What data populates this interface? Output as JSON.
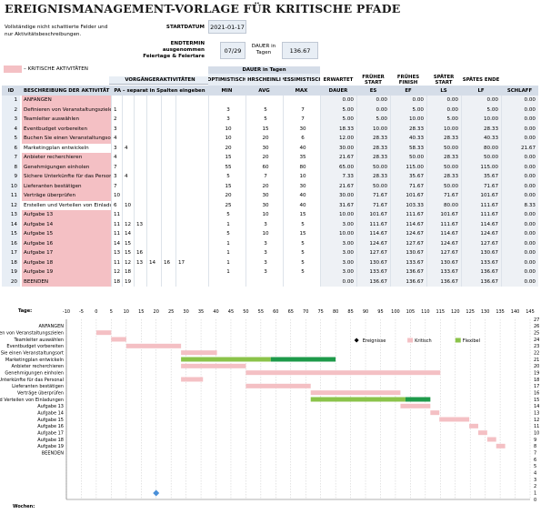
{
  "title": "EREIGNISMANAGEMENT-VORLAGE FÜR KRITISCHE PFADE",
  "instructions": "Vollständige nicht schattierte Felder und nur Aktivitätsbeschreibungen.",
  "start_date_label": "STARTDATUM",
  "start_date_value": "2021-01-17",
  "end_date_label": "ENDTERMIN ausgenommen Feiertage & Feiertare",
  "end_date_value": "07/29",
  "duration_label": "DAUER in Tagen",
  "duration_value": "136.67",
  "legend_critical": "– KRITISCHE AKTIVITÄTEN",
  "headers": {
    "id": "ID",
    "desc": "BESCHREIBUNG DER AKTIVITÄT",
    "pred_group": "VORGÄNGERAKTIVITÄTEN",
    "pred_sub": "PA – separat in Spalten eingeben",
    "dur_group": "DAUER in Tagen",
    "opt_top": "OPTIMISTISCH",
    "opt": "MIN",
    "likely_top": "HRSCHEINLI",
    "likely": "AVG",
    "pess_top": "PESSIMISTISCH",
    "pess": "MAX",
    "exp_top": "ERWARTET",
    "exp": "DAUER",
    "es_top": "FRÜHER START",
    "es": "ES",
    "ef_top": "FRÜHES FINISH",
    "ef": "EF",
    "ls_top": "SPÄTER START",
    "ls": "LS",
    "lf_top": "SPÄTES ENDE",
    "lf": "LF",
    "slack": "SCHLAFF"
  },
  "rows": [
    {
      "id": "1",
      "desc": "ANFANGEN",
      "crit": true,
      "pred": [
        "",
        "",
        "",
        "",
        "",
        ""
      ],
      "min": "",
      "avg": "",
      "max": "",
      "dur": "0.00",
      "es": "0.00",
      "ef": "0.00",
      "ls": "0.00",
      "lf": "0.00",
      "slack": "0.00"
    },
    {
      "id": "2",
      "desc": "Definieren von Veranstaltungszielen",
      "crit": true,
      "pred": [
        "1",
        "",
        "",
        "",
        "",
        ""
      ],
      "min": "3",
      "avg": "5",
      "max": "7",
      "dur": "5.00",
      "es": "0.00",
      "ef": "5.00",
      "ls": "0.00",
      "lf": "5.00",
      "slack": "0.00"
    },
    {
      "id": "3",
      "desc": "Teamleiter auswählen",
      "crit": true,
      "pred": [
        "2",
        "",
        "",
        "",
        "",
        ""
      ],
      "min": "3",
      "avg": "5",
      "max": "7",
      "dur": "5.00",
      "es": "5.00",
      "ef": "10.00",
      "ls": "5.00",
      "lf": "10.00",
      "slack": "0.00"
    },
    {
      "id": "4",
      "desc": "Eventbudget vorbereiten",
      "crit": true,
      "pred": [
        "3",
        "",
        "",
        "",
        "",
        ""
      ],
      "min": "10",
      "avg": "15",
      "max": "30",
      "dur": "18.33",
      "es": "10.00",
      "ef": "28.33",
      "ls": "10.00",
      "lf": "28.33",
      "slack": "0.00"
    },
    {
      "id": "5",
      "desc": "Buchen Sie einen Veranstaltungsort",
      "crit": true,
      "pred": [
        "4",
        "",
        "",
        "",
        "",
        ""
      ],
      "min": "10",
      "avg": "20",
      "max": "6",
      "dur": "12.00",
      "es": "28.33",
      "ef": "40.33",
      "ls": "28.33",
      "lf": "40.33",
      "slack": "0.00"
    },
    {
      "id": "6",
      "desc": "Marketingplan entwickeln",
      "crit": false,
      "pred": [
        "3",
        "4",
        "",
        "",
        "",
        ""
      ],
      "min": "20",
      "avg": "30",
      "max": "40",
      "dur": "30.00",
      "es": "28.33",
      "ef": "58.33",
      "ls": "50.00",
      "lf": "80.00",
      "slack": "21.67"
    },
    {
      "id": "7",
      "desc": "Anbieter recherchieren",
      "crit": true,
      "pred": [
        "4",
        "",
        "",
        "",
        "",
        ""
      ],
      "min": "15",
      "avg": "20",
      "max": "35",
      "dur": "21.67",
      "es": "28.33",
      "ef": "50.00",
      "ls": "28.33",
      "lf": "50.00",
      "slack": "0.00"
    },
    {
      "id": "8",
      "desc": "Genehmigungen einholen",
      "crit": true,
      "pred": [
        "7",
        "",
        "",
        "",
        "",
        ""
      ],
      "min": "55",
      "avg": "60",
      "max": "80",
      "dur": "65.00",
      "es": "50.00",
      "ef": "115.00",
      "ls": "50.00",
      "lf": "115.00",
      "slack": "0.00"
    },
    {
      "id": "9",
      "desc": "Sichere Unterkünfte für das Personal",
      "crit": true,
      "pred": [
        "3",
        "4",
        "",
        "",
        "",
        ""
      ],
      "min": "5",
      "avg": "7",
      "max": "10",
      "dur": "7.33",
      "es": "28.33",
      "ef": "35.67",
      "ls": "28.33",
      "lf": "35.67",
      "slack": "0.00"
    },
    {
      "id": "10",
      "desc": "Lieferanten bestätigen",
      "crit": true,
      "pred": [
        "7",
        "",
        "",
        "",
        "",
        ""
      ],
      "min": "15",
      "avg": "20",
      "max": "30",
      "dur": "21.67",
      "es": "50.00",
      "ef": "71.67",
      "ls": "50.00",
      "lf": "71.67",
      "slack": "0.00"
    },
    {
      "id": "11",
      "desc": "Verträge überprüfen",
      "crit": true,
      "pred": [
        "10",
        "",
        "",
        "",
        "",
        ""
      ],
      "min": "20",
      "avg": "30",
      "max": "40",
      "dur": "30.00",
      "es": "71.67",
      "ef": "101.67",
      "ls": "71.67",
      "lf": "101.67",
      "slack": "0.00"
    },
    {
      "id": "12",
      "desc": "Erstellen und Verteilen von Einladungen",
      "crit": false,
      "pred": [
        "6",
        "10",
        "",
        "",
        "",
        ""
      ],
      "min": "25",
      "avg": "30",
      "max": "40",
      "dur": "31.67",
      "es": "71.67",
      "ef": "103.33",
      "ls": "80.00",
      "lf": "111.67",
      "slack": "8.33"
    },
    {
      "id": "13",
      "desc": "Aufgabe 13",
      "crit": true,
      "pred": [
        "11",
        "",
        "",
        "",
        "",
        ""
      ],
      "min": "5",
      "avg": "10",
      "max": "15",
      "dur": "10.00",
      "es": "101.67",
      "ef": "111.67",
      "ls": "101.67",
      "lf": "111.67",
      "slack": "0.00"
    },
    {
      "id": "14",
      "desc": "Aufgabe 14",
      "crit": true,
      "pred": [
        "11",
        "12",
        "13",
        "",
        "",
        ""
      ],
      "min": "1",
      "avg": "3",
      "max": "5",
      "dur": "3.00",
      "es": "111.67",
      "ef": "114.67",
      "ls": "111.67",
      "lf": "114.67",
      "slack": "0.00"
    },
    {
      "id": "15",
      "desc": "Aufgabe 15",
      "crit": true,
      "pred": [
        "11",
        "14",
        "",
        "",
        "",
        ""
      ],
      "min": "5",
      "avg": "10",
      "max": "15",
      "dur": "10.00",
      "es": "114.67",
      "ef": "124.67",
      "ls": "114.67",
      "lf": "124.67",
      "slack": "0.00"
    },
    {
      "id": "16",
      "desc": "Aufgabe 16",
      "crit": true,
      "pred": [
        "14",
        "15",
        "",
        "",
        "",
        ""
      ],
      "min": "1",
      "avg": "3",
      "max": "5",
      "dur": "3.00",
      "es": "124.67",
      "ef": "127.67",
      "ls": "124.67",
      "lf": "127.67",
      "slack": "0.00"
    },
    {
      "id": "17",
      "desc": "Aufgabe 17",
      "crit": true,
      "pred": [
        "13",
        "15",
        "16",
        "",
        "",
        ""
      ],
      "min": "1",
      "avg": "3",
      "max": "5",
      "dur": "3.00",
      "es": "127.67",
      "ef": "130.67",
      "ls": "127.67",
      "lf": "130.67",
      "slack": "0.00"
    },
    {
      "id": "18",
      "desc": "Aufgabe 18",
      "crit": true,
      "pred": [
        "11",
        "12",
        "13",
        "14",
        "16",
        "17"
      ],
      "min": "1",
      "avg": "3",
      "max": "5",
      "dur": "3.00",
      "es": "130.67",
      "ef": "133.67",
      "ls": "130.67",
      "lf": "133.67",
      "slack": "0.00"
    },
    {
      "id": "19",
      "desc": "Aufgabe 19",
      "crit": true,
      "pred": [
        "12",
        "18",
        "",
        "",
        "",
        ""
      ],
      "min": "1",
      "avg": "3",
      "max": "5",
      "dur": "3.00",
      "es": "133.67",
      "ef": "136.67",
      "ls": "133.67",
      "lf": "136.67",
      "slack": "0.00"
    },
    {
      "id": "20",
      "desc": "BEENDEN",
      "crit": true,
      "pred": [
        "18",
        "19",
        "",
        "",
        "",
        ""
      ],
      "min": "",
      "avg": "",
      "max": "",
      "dur": "0.00",
      "es": "136.67",
      "ef": "136.67",
      "ls": "136.67",
      "lf": "136.67",
      "slack": "0.00"
    }
  ],
  "chart_data": {
    "type": "bar",
    "title": "",
    "top_label": "Tage:",
    "bottom_label": "Wochen:",
    "xlim": [
      -10,
      145
    ],
    "x_ticks": [
      -10,
      -5,
      0,
      5,
      10,
      15,
      20,
      25,
      30,
      35,
      40,
      45,
      50,
      55,
      60,
      65,
      70,
      75,
      80,
      85,
      90,
      95,
      100,
      105,
      110,
      115,
      120,
      125,
      130,
      135,
      140,
      145
    ],
    "ylim": [
      0,
      27
    ],
    "y_ticks": [
      27,
      26,
      25,
      24,
      23,
      22,
      21,
      20,
      19,
      18,
      17,
      16,
      15,
      14,
      13,
      12,
      11,
      10,
      9,
      8,
      7,
      6,
      5,
      4,
      3,
      2,
      1,
      0
    ],
    "legend": [
      "Ereignisse",
      "Kritisch",
      "Flexibel"
    ],
    "categories": [
      "ANFANGEN",
      "Definieren von Veranstaltungszielen",
      "Teamleiter auswählen",
      "Eventbudget vorbereiten",
      "Buchen Sie einen Veranstaltungsort",
      "Marketingplan entwickeln",
      "Anbieter recherchieren",
      "Genehmigungen einholen",
      "Sichere Unterkünfte für das Personal",
      "Lieferanten bestätigen",
      "Verträge überprüfen",
      "Erstellen und Verteilen von Einladungen",
      "Aufgabe 13",
      "Aufgabe 14",
      "Aufgabe 15",
      "Aufgabe 16",
      "Aufgabe 17",
      "Aufgabe 18",
      "Aufgabe 19",
      "BEENDEN"
    ],
    "es": [
      0,
      0,
      5,
      10,
      28.33,
      28.33,
      28.33,
      50,
      28.33,
      50,
      71.67,
      71.67,
      101.67,
      111.67,
      114.67,
      124.67,
      127.67,
      130.67,
      133.67,
      136.67
    ],
    "dur": [
      0,
      5,
      5,
      18.33,
      12,
      30,
      21.67,
      65,
      7.33,
      21.67,
      30,
      31.67,
      10,
      3,
      10,
      3,
      3,
      3,
      3,
      0
    ],
    "slack": [
      0,
      0,
      0,
      0,
      0,
      21.67,
      0,
      0,
      0,
      0,
      0,
      8.33,
      0,
      0,
      0,
      0,
      0,
      0,
      0,
      0
    ],
    "event_x": 20,
    "colors": {
      "critical": "#f4c0c4",
      "flexible": "#8bc34a",
      "slack": "#1e9a4a",
      "event": "#4a90d9"
    }
  }
}
